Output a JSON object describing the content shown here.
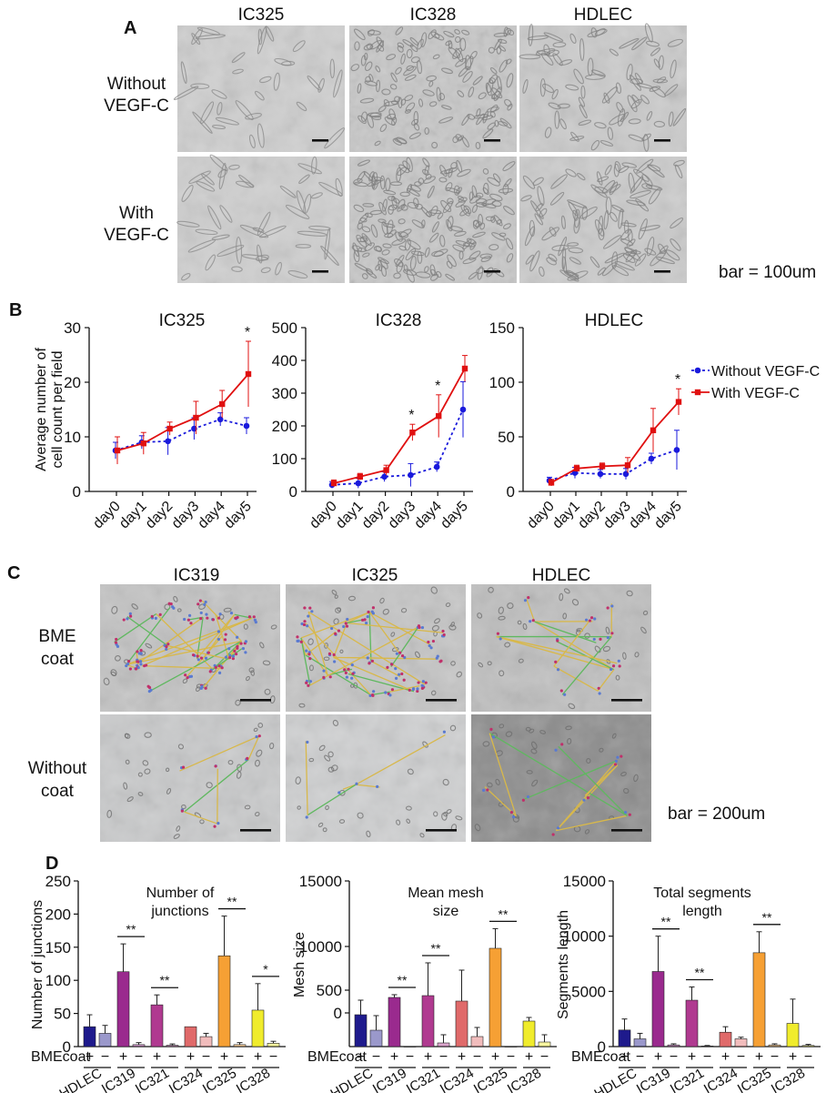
{
  "panels": {
    "A": {
      "letter": "A",
      "columns": [
        "IC325",
        "IC328",
        "HDLEC"
      ],
      "rows": [
        [
          "Without",
          "VEGF-C"
        ],
        [
          "With",
          "VEGF-C"
        ]
      ],
      "scale_note": "bar = 100um"
    },
    "B": {
      "letter": "B"
    },
    "C": {
      "letter": "C",
      "columns": [
        "IC319",
        "IC325",
        "HDLEC"
      ],
      "rows": [
        [
          "BME",
          "coat"
        ],
        [
          "Without",
          "coat"
        ]
      ],
      "scale_note": "bar = 200um"
    },
    "D": {
      "letter": "D"
    }
  },
  "colors": {
    "without_vegf": "#1a1adc",
    "with_vegf": "#e01010",
    "HDLEC": "#1e1a8c",
    "IC319": "#9a2a8e",
    "IC321": "#b03a90",
    "IC324": "#e06a6a",
    "IC325": "#f6a034",
    "IC328": "#f0ec2c"
  },
  "chart_data": [
    {
      "type": "line",
      "title": "IC325",
      "ylabel": "Average number of cell count per field",
      "ylabel_lines": [
        "Average number of",
        "cell count per field"
      ],
      "x": [
        "day0",
        "day1",
        "day2",
        "day3",
        "day4",
        "day5"
      ],
      "ylim": [
        0,
        30
      ],
      "yticks": [
        0,
        10,
        20,
        30
      ],
      "series": [
        {
          "name": "Without VEGF-C",
          "values": [
            7.5,
            9,
            9.2,
            11.5,
            13.2,
            12
          ],
          "errors": [
            1.5,
            1.2,
            2.5,
            2.0,
            1.2,
            1.5
          ],
          "style": "dotted"
        },
        {
          "name": "With VEGF-C",
          "values": [
            7.5,
            8.8,
            11.5,
            13.5,
            16,
            21.5
          ],
          "errors": [
            2.5,
            2.0,
            1.2,
            3.0,
            2.5,
            6.0
          ],
          "style": "solid"
        }
      ],
      "annotations": [
        {
          "x": "day5",
          "text": "*"
        }
      ]
    },
    {
      "type": "line",
      "title": "IC328",
      "x": [
        "day0",
        "day1",
        "day2",
        "day3",
        "day4",
        "day5"
      ],
      "ylim": [
        0,
        500
      ],
      "yticks": [
        0,
        100,
        200,
        300,
        400,
        500
      ],
      "series": [
        {
          "name": "Without VEGF-C",
          "values": [
            20,
            25,
            45,
            50,
            75,
            250
          ],
          "errors": [
            10,
            15,
            15,
            35,
            15,
            85
          ],
          "style": "dotted"
        },
        {
          "name": "With VEGF-C",
          "values": [
            25,
            45,
            65,
            180,
            230,
            375
          ],
          "errors": [
            10,
            10,
            15,
            25,
            65,
            40
          ],
          "style": "solid"
        }
      ],
      "annotations": [
        {
          "x": "day3",
          "text": "*"
        },
        {
          "x": "day4",
          "text": "*"
        }
      ]
    },
    {
      "type": "line",
      "title": "HDLEC",
      "x": [
        "day0",
        "day1",
        "day2",
        "day3",
        "day4",
        "day5"
      ],
      "ylim": [
        0,
        150
      ],
      "yticks": [
        0,
        50,
        100,
        150
      ],
      "legend": "right",
      "series": [
        {
          "name": "Without VEGF-C",
          "values": [
            10,
            17,
            16,
            16,
            30,
            38
          ],
          "errors": [
            3,
            5,
            4,
            5,
            5,
            18
          ],
          "style": "dotted"
        },
        {
          "name": "With VEGF-C",
          "values": [
            8,
            21,
            23,
            24,
            56,
            82
          ],
          "errors": [
            3,
            3,
            3,
            7,
            20,
            12
          ],
          "style": "solid"
        }
      ],
      "annotations": [
        {
          "x": "day5",
          "text": "*"
        }
      ]
    },
    {
      "type": "bar",
      "title_lines": [
        "Number of",
        "junctions"
      ],
      "ylabel": "Number of junctions",
      "ylim": [
        0,
        250
      ],
      "yticks": [
        0,
        50,
        100,
        150,
        200,
        250
      ],
      "row_label": "BMEcoat",
      "groups": [
        "HDLEC",
        "IC319",
        "IC321",
        "IC324",
        "IC325",
        "IC328"
      ],
      "conditions": [
        "+",
        "−"
      ],
      "values": [
        30,
        20,
        113,
        3,
        63,
        2,
        30,
        15,
        137,
        3,
        55,
        5
      ],
      "errors": [
        18,
        12,
        42,
        3,
        15,
        2,
        0,
        5,
        60,
        3,
        40,
        3
      ],
      "significance": [
        [
          "IC319",
          "**"
        ],
        [
          "IC321",
          "**"
        ],
        [
          "IC325",
          "**"
        ],
        [
          "IC328",
          "*"
        ]
      ]
    },
    {
      "type": "bar",
      "title_lines": [
        "Mean mesh",
        "size"
      ],
      "ylabel": "Mesh size",
      "yticks_labels": [
        "0",
        "500",
        "10000",
        "15000"
      ],
      "row_label": "BMEcoat",
      "groups": [
        "HDLEC",
        "IC319",
        "IC321",
        "IC324",
        "IC325",
        "IC328"
      ],
      "conditions": [
        "+",
        "−"
      ],
      "values": [
        3500,
        1800,
        5400,
        0,
        5600,
        400,
        5000,
        1100,
        10800,
        0,
        2800,
        500
      ],
      "errors": [
        1600,
        1600,
        300,
        0,
        3600,
        900,
        3400,
        1000,
        3200,
        0,
        400,
        800
      ],
      "significance": [
        [
          "IC319",
          "**"
        ],
        [
          "IC321",
          "**"
        ],
        [
          "IC325",
          "**"
        ]
      ]
    },
    {
      "type": "bar",
      "title_lines": [
        "Total segments",
        "length"
      ],
      "ylabel": "Segments length",
      "ylim": [
        0,
        15000
      ],
      "yticks": [
        0,
        5000,
        10000,
        15000
      ],
      "row_label": "BMEcoat",
      "groups": [
        "HDLEC",
        "IC319",
        "IC321",
        "IC324",
        "IC325",
        "IC328"
      ],
      "conditions": [
        "+",
        "−"
      ],
      "values": [
        1500,
        700,
        6800,
        150,
        4200,
        50,
        1300,
        700,
        8500,
        150,
        2100,
        100
      ],
      "errors": [
        1000,
        500,
        3200,
        100,
        1200,
        50,
        500,
        150,
        1900,
        100,
        2200,
        100
      ],
      "significance": [
        [
          "IC319",
          "**"
        ],
        [
          "IC321",
          "**"
        ],
        [
          "IC325",
          "**"
        ]
      ]
    }
  ]
}
